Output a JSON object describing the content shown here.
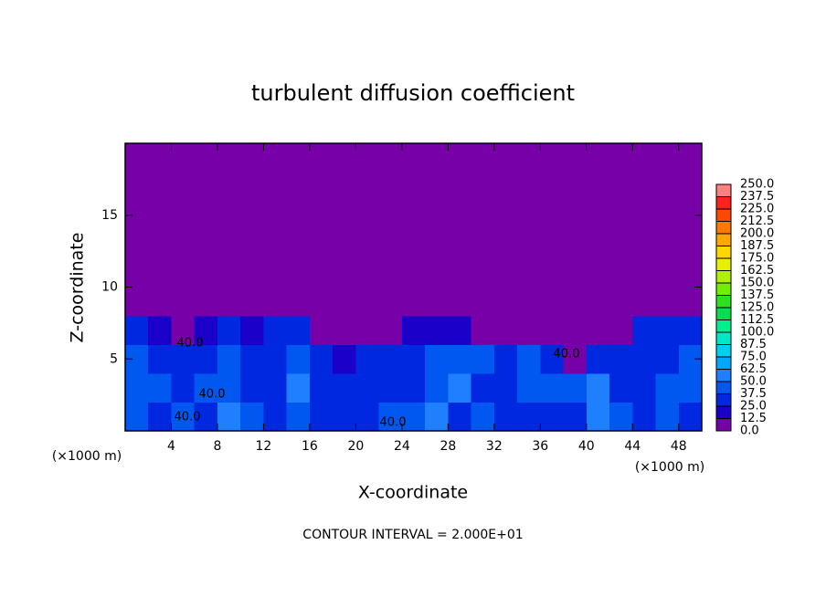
{
  "chart_data": {
    "type": "heatmap",
    "title": "turbulent diffusion coefficient",
    "x_label": "X-coordinate",
    "y_label": "Z-coordinate",
    "x_unit": "(×1000 m)",
    "y_unit": "(×1000 m)",
    "footer": "CONTOUR INTERVAL = 2.000E+01",
    "contour_labels": [
      "40.0",
      "40.0",
      "40.0",
      "40.0",
      "40.0"
    ],
    "xlim": [
      0,
      50
    ],
    "ylim": [
      0,
      20
    ],
    "xticks": [
      4,
      8,
      12,
      16,
      20,
      24,
      28,
      32,
      36,
      40,
      44,
      48
    ],
    "yticks": [
      5,
      10,
      15
    ],
    "x": [
      1,
      3,
      5,
      7,
      9,
      11,
      13,
      15,
      17,
      19,
      21,
      23,
      25,
      27,
      29,
      31,
      33,
      35,
      37,
      39,
      41,
      43,
      45,
      47,
      49
    ],
    "y": [
      1,
      3,
      5,
      7,
      9,
      11,
      13,
      15,
      17,
      19
    ],
    "z": [
      [
        40,
        35,
        40,
        30,
        50,
        40,
        30,
        45,
        30,
        25,
        30,
        40,
        40,
        50,
        35,
        40,
        30,
        30,
        35,
        30,
        50,
        40,
        30,
        45,
        35
      ],
      [
        45,
        40,
        35,
        40,
        45,
        30,
        35,
        50,
        30,
        25,
        35,
        35,
        30,
        45,
        50,
        35,
        30,
        40,
        40,
        45,
        50,
        30,
        35,
        40,
        40
      ],
      [
        40,
        30,
        35,
        35,
        40,
        30,
        30,
        40,
        30,
        20,
        25,
        35,
        30,
        40,
        45,
        40,
        35,
        45,
        25,
        10,
        30,
        35,
        30,
        35,
        40
      ],
      [
        30,
        20,
        10,
        15,
        25,
        20,
        25,
        30,
        10,
        0,
        0,
        10,
        15,
        20,
        15,
        10,
        5,
        5,
        0,
        0,
        0,
        10,
        25,
        30,
        35
      ],
      [
        0,
        0,
        0,
        0,
        0,
        0,
        0,
        0,
        0,
        0,
        0,
        0,
        0,
        0,
        0,
        0,
        0,
        0,
        0,
        0,
        0,
        0,
        0,
        0,
        0
      ],
      [
        0,
        0,
        0,
        0,
        0,
        0,
        0,
        0,
        0,
        0,
        0,
        0,
        0,
        0,
        0,
        0,
        0,
        0,
        0,
        0,
        0,
        0,
        0,
        0,
        0
      ],
      [
        0,
        0,
        0,
        0,
        0,
        0,
        0,
        0,
        0,
        0,
        0,
        0,
        0,
        0,
        0,
        0,
        0,
        0,
        0,
        0,
        0,
        0,
        0,
        0,
        0
      ],
      [
        0,
        0,
        0,
        0,
        0,
        0,
        0,
        0,
        0,
        0,
        0,
        0,
        0,
        0,
        0,
        0,
        0,
        0,
        0,
        0,
        0,
        0,
        0,
        0,
        0
      ],
      [
        0,
        0,
        0,
        0,
        0,
        0,
        0,
        0,
        0,
        0,
        0,
        0,
        0,
        0,
        0,
        0,
        0,
        0,
        0,
        0,
        0,
        0,
        0,
        0,
        0
      ],
      [
        0,
        0,
        0,
        0,
        0,
        0,
        0,
        0,
        0,
        0,
        0,
        0,
        0,
        0,
        0,
        0,
        0,
        0,
        0,
        0,
        0,
        0,
        0,
        0,
        0
      ]
    ],
    "levels": [
      {
        "value": 0,
        "label": "0.0"
      },
      {
        "value": 12.5,
        "label": "12.5"
      },
      {
        "value": 25,
        "label": "25.0"
      },
      {
        "value": 37.5,
        "label": "37.5"
      },
      {
        "value": 50,
        "label": "50.0"
      },
      {
        "value": 62.5,
        "label": "62.5"
      },
      {
        "value": 75,
        "label": "75.0"
      },
      {
        "value": 87.5,
        "label": "87.5"
      },
      {
        "value": 100,
        "label": "100.0"
      },
      {
        "value": 112.5,
        "label": "112.5"
      },
      {
        "value": 125,
        "label": "125.0"
      },
      {
        "value": 137.5,
        "label": "137.5"
      },
      {
        "value": 150,
        "label": "150.0"
      },
      {
        "value": 162.5,
        "label": "162.5"
      },
      {
        "value": 175,
        "label": "175.0"
      },
      {
        "value": 187.5,
        "label": "187.5"
      },
      {
        "value": 200,
        "label": "200.0"
      },
      {
        "value": 212.5,
        "label": "212.5"
      },
      {
        "value": 225,
        "label": "225.0"
      },
      {
        "value": 237.5,
        "label": "237.5"
      },
      {
        "value": 250,
        "label": "250.0"
      }
    ],
    "colors": [
      "#7800a8",
      "#1a00c8",
      "#0028e0",
      "#0058f0",
      "#1e80ff",
      "#00a8ff",
      "#00d0f0",
      "#00e8c8",
      "#00f090",
      "#00e050",
      "#30e020",
      "#70f000",
      "#b0f000",
      "#e8f000",
      "#ffd800",
      "#ffa800",
      "#ff7800",
      "#ff4800",
      "#ff2020",
      "#ff8080"
    ]
  }
}
